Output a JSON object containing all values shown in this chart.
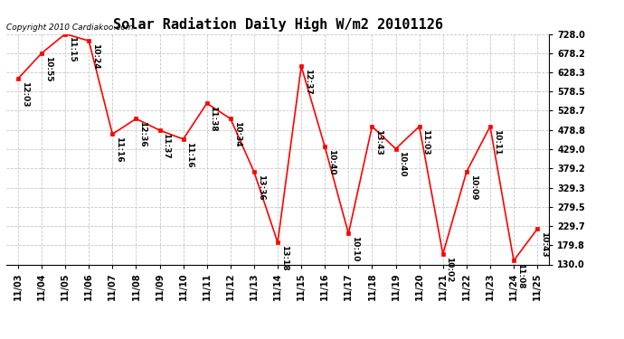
{
  "title": "Solar Radiation Daily High W/m2 20101126",
  "copyright": "Copyright 2010 Cardiakoo.com",
  "x_labels": [
    "11/03",
    "11/04",
    "11/05",
    "11/06",
    "11/07",
    "11/08",
    "11/09",
    "11/10",
    "11/11",
    "11/12",
    "11/13",
    "11/14",
    "11/15",
    "11/16",
    "11/17",
    "11/18",
    "11/19",
    "11/20",
    "11/21",
    "11/22",
    "11/23",
    "11/24",
    "11/25"
  ],
  "values": [
    612,
    678,
    728,
    710,
    468,
    508,
    478,
    455,
    548,
    508,
    370,
    187,
    644,
    435,
    210,
    488,
    430,
    488,
    157,
    370,
    488,
    140,
    222
  ],
  "time_labels": [
    "12:03",
    "10:55",
    "11:15",
    "10:24",
    "11:16",
    "12:36",
    "11:37",
    "11:16",
    "11:38",
    "10:34",
    "13:36",
    "13:18",
    "12:37",
    "10:40",
    "10:10",
    "13:43",
    "10:40",
    "11:03",
    "10:02",
    "10:09",
    "10:11",
    "11:08",
    "10:43"
  ],
  "ylim": [
    130,
    728
  ],
  "yticks": [
    130.0,
    179.8,
    229.7,
    279.5,
    329.3,
    379.2,
    429.0,
    478.8,
    528.7,
    578.5,
    628.3,
    678.2,
    728.0
  ],
  "line_color": "#ff0000",
  "marker_color": "#ff0000",
  "bg_color": "#ffffff",
  "grid_color": "#c8c8c8",
  "title_fontsize": 11,
  "tick_fontsize": 7,
  "annot_fontsize": 6.5,
  "copyright_fontsize": 6.5
}
